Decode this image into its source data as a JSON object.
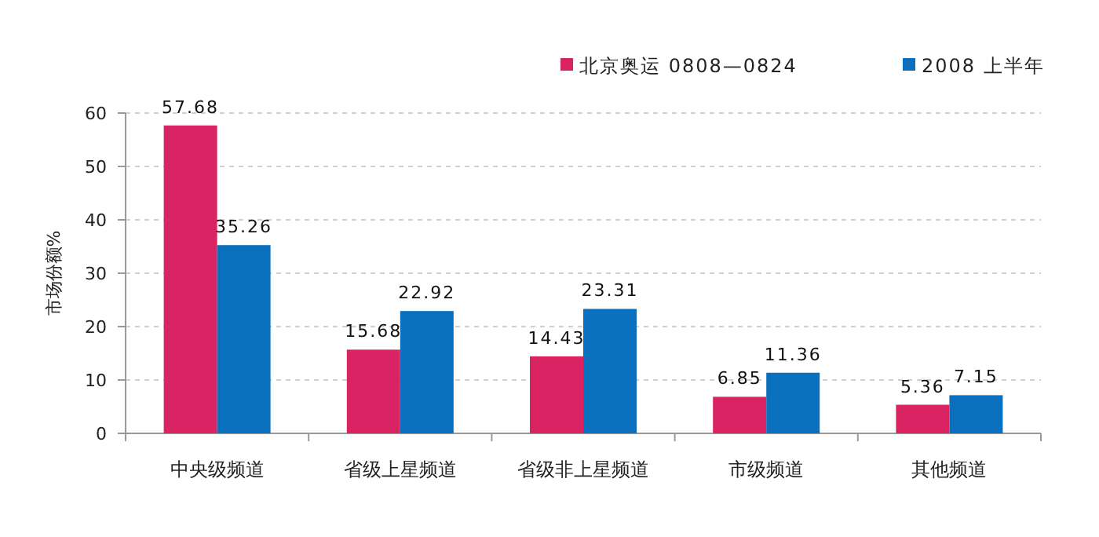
{
  "chart_data": {
    "type": "bar",
    "ylabel": "市场份额%",
    "categories": [
      "中央级频道",
      "省级上星频道",
      "省级非上星频道",
      "市级频道",
      "其他频道"
    ],
    "series": [
      {
        "name": "北京奥运 0808—0824",
        "color": "#d92362",
        "values": [
          57.68,
          15.68,
          14.43,
          6.85,
          5.36
        ]
      },
      {
        "name": "2008 上半年",
        "color": "#0a70be",
        "values": [
          35.26,
          22.92,
          23.31,
          11.36,
          7.15
        ]
      }
    ],
    "ylim": [
      0,
      60
    ],
    "yticks": [
      0,
      10,
      20,
      30,
      40,
      50,
      60
    ],
    "grid": "y",
    "legend": "top right",
    "data_labels": true
  }
}
